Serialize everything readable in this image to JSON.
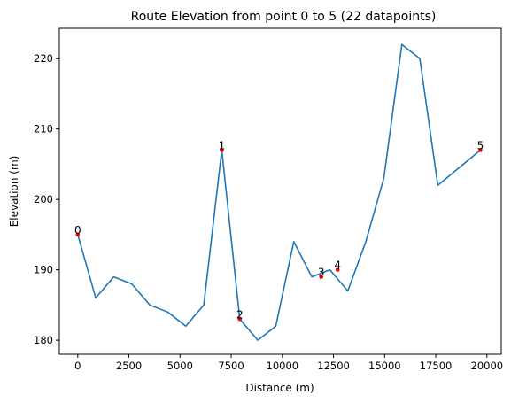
{
  "chart_data": {
    "type": "line",
    "title": "Route Elevation from point 0 to 5 (22 datapoints)",
    "xlabel": "Distance (m)",
    "ylabel": "Elevation (m)",
    "xlim": [
      -900,
      20700
    ],
    "ylim": [
      178,
      224.3
    ],
    "xticks": [
      0,
      2500,
      5000,
      7500,
      10000,
      12500,
      15000,
      17500,
      20000
    ],
    "yticks": [
      180,
      190,
      200,
      210,
      220
    ],
    "grid": false,
    "series": [
      {
        "color": "#1f77b4",
        "x": [
          0,
          880,
          1760,
          2640,
          3520,
          4400,
          5280,
          6160,
          7040,
          7920,
          8800,
          9680,
          10560,
          11440,
          12320,
          13200,
          14080,
          14960,
          15840,
          16720,
          17600,
          19680
        ],
        "y": [
          195,
          186,
          189,
          188,
          185,
          184,
          182,
          185,
          207,
          183,
          180,
          182,
          194,
          189,
          190,
          187,
          194,
          203,
          222,
          220,
          202,
          207
        ]
      }
    ],
    "marked_points": [
      {
        "label": "0",
        "x": 0,
        "y": 195
      },
      {
        "label": "1",
        "x": 7040,
        "y": 207
      },
      {
        "label": "2",
        "x": 7920,
        "y": 183
      },
      {
        "label": "3",
        "x": 11900,
        "y": 189
      },
      {
        "label": "4",
        "x": 12700,
        "y": 190
      },
      {
        "label": "5",
        "x": 19680,
        "y": 207
      }
    ],
    "marker_color": "#ff0000"
  }
}
